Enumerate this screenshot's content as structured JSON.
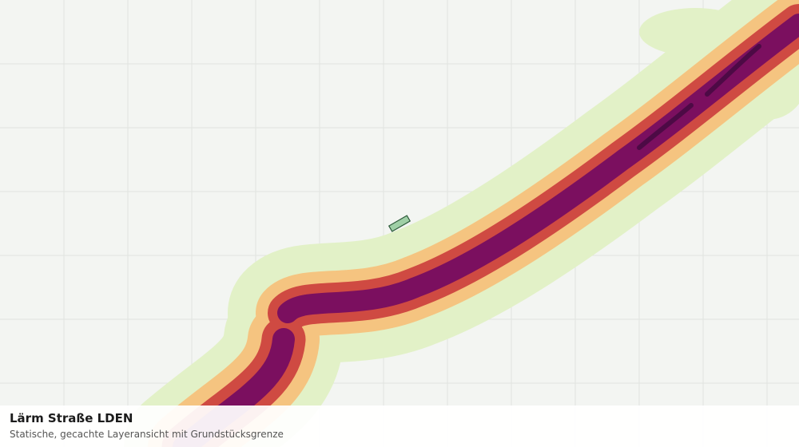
{
  "map": {
    "title": "Lärm Straße LDEN",
    "subtitle": "Statische, gecachte Layeransicht mit Grundstücksgrenze"
  }
}
